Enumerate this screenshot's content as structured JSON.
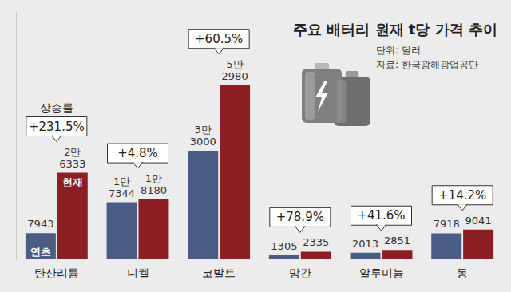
{
  "chart_data": {
    "type": "bar",
    "title": "주요 배터리 원재 t당 가격 추이",
    "subtitle": "단위: 달러",
    "source": "자료: 한국광해광업공단",
    "categories": [
      "탄산리튬",
      "니켈",
      "코발트",
      "망간",
      "알루미늄",
      "동"
    ],
    "series": [
      {
        "name": "연초",
        "color": "#4b5d84",
        "values": [
          7943,
          17344,
          33000,
          1305,
          2013,
          7918
        ],
        "value_labels": [
          "7943",
          "1만\n7344",
          "3만\n3000",
          "1305",
          "2013",
          "7918"
        ]
      },
      {
        "name": "현재",
        "color": "#8c1f24",
        "values": [
          26333,
          18180,
          52980,
          2335,
          2851,
          9041
        ],
        "value_labels": [
          "2만\n6333",
          "1만\n8180",
          "5만\n2980",
          "2335",
          "2851",
          "9041"
        ]
      }
    ],
    "annotations": {
      "title": "상승률",
      "labels": [
        "+231.5%",
        "+4.8%",
        "+60.5%",
        "+78.9%",
        "+41.6%",
        "+14.2%"
      ]
    },
    "ylim": [
      0,
      75000
    ],
    "data_labels": true,
    "tick_labels": false,
    "grid": false
  }
}
